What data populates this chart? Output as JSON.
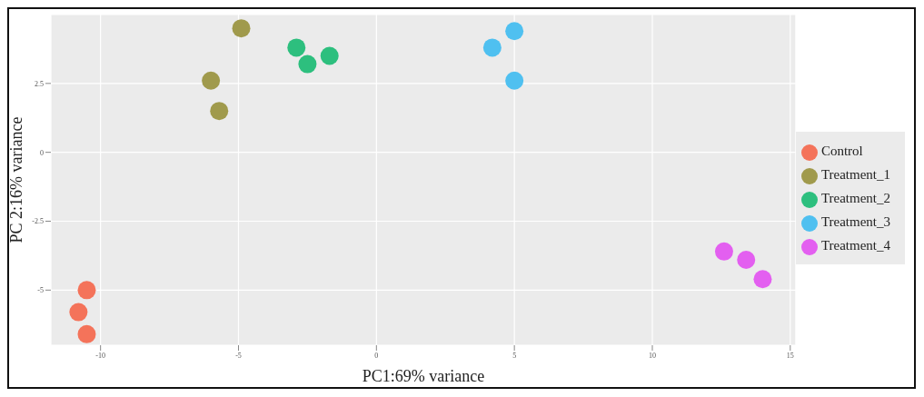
{
  "chart_data": {
    "type": "scatter",
    "xlabel": "PC1:69% variance",
    "ylabel": "PC 2:16% variance",
    "xlim": [
      -11.8,
      15.2
    ],
    "xticks": [
      -10,
      -5,
      0,
      5,
      10,
      15
    ],
    "ylim": [
      -7,
      5
    ],
    "yticks": [
      -5,
      -2.5,
      0,
      2.5
    ],
    "grid": true,
    "legend": "right",
    "marker": "circle",
    "series": [
      {
        "name": "Control",
        "color": "#f4735a",
        "x": [
          -10.5,
          -10.8,
          -10.5
        ],
        "values": [
          -5.0,
          -5.8,
          -6.6
        ]
      },
      {
        "name": "Treatment_1",
        "color": "#a09a4c",
        "x": [
          -4.9,
          -6.0,
          -5.7
        ],
        "values": [
          4.5,
          2.6,
          1.5
        ]
      },
      {
        "name": "Treatment_2",
        "color": "#2dbf7e",
        "x": [
          -2.9,
          -2.5,
          -1.7
        ],
        "values": [
          3.8,
          3.2,
          3.5
        ]
      },
      {
        "name": "Treatment_3",
        "color": "#4fc0f0",
        "x": [
          4.2,
          5.0,
          5.0
        ],
        "values": [
          3.8,
          4.4,
          2.6
        ]
      },
      {
        "name": "Treatment_4",
        "color": "#e35ff0",
        "x": [
          12.6,
          13.4,
          14.0
        ],
        "values": [
          -3.6,
          -3.9,
          -4.6
        ]
      }
    ]
  }
}
